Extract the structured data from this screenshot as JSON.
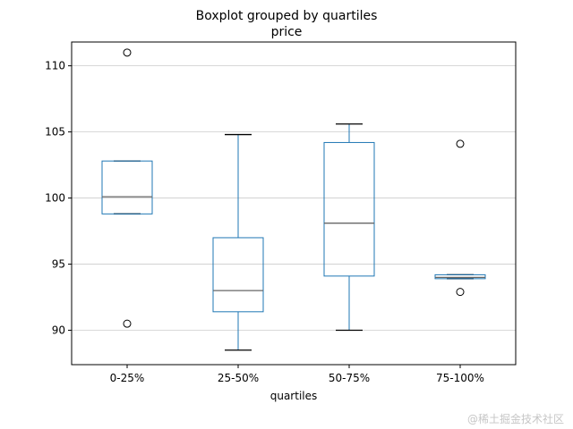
{
  "figure": {
    "watermark": "@稀土掘金技术社区"
  },
  "chart_data": {
    "type": "boxplot",
    "title": "Boxplot grouped by quartiles",
    "subtitle": "price",
    "xlabel": "quartiles",
    "ylabel": "",
    "categories": [
      "0-25%",
      "25-50%",
      "50-75%",
      "75-100%"
    ],
    "yticks": [
      90,
      95,
      100,
      105,
      110
    ],
    "ylim": [
      87.4,
      111.8
    ],
    "grid": true,
    "legend_position": "none",
    "colors": {
      "box": "#1f77b4",
      "whisker": "#1f77b4",
      "cap": "#000000",
      "median": "#666666",
      "outlier_edge": "#000000",
      "grid": "#cccccc",
      "spine": "#000000"
    },
    "boxes": [
      {
        "category": "0-25%",
        "whisker_low": 98.8,
        "q1": 98.8,
        "median": 100.1,
        "q3": 102.8,
        "whisker_high": 102.8,
        "outliers": [
          111.0,
          90.5
        ]
      },
      {
        "category": "25-50%",
        "whisker_low": 88.5,
        "q1": 91.4,
        "median": 93.0,
        "q3": 97.0,
        "whisker_high": 104.8,
        "outliers": []
      },
      {
        "category": "50-75%",
        "whisker_low": 90.0,
        "q1": 94.1,
        "median": 98.1,
        "q3": 104.2,
        "whisker_high": 105.6,
        "outliers": []
      },
      {
        "category": "75-100%",
        "whisker_low": 93.9,
        "q1": 93.9,
        "median": 94.0,
        "q3": 94.2,
        "whisker_high": 94.2,
        "outliers": [
          104.1,
          92.9
        ]
      }
    ]
  }
}
